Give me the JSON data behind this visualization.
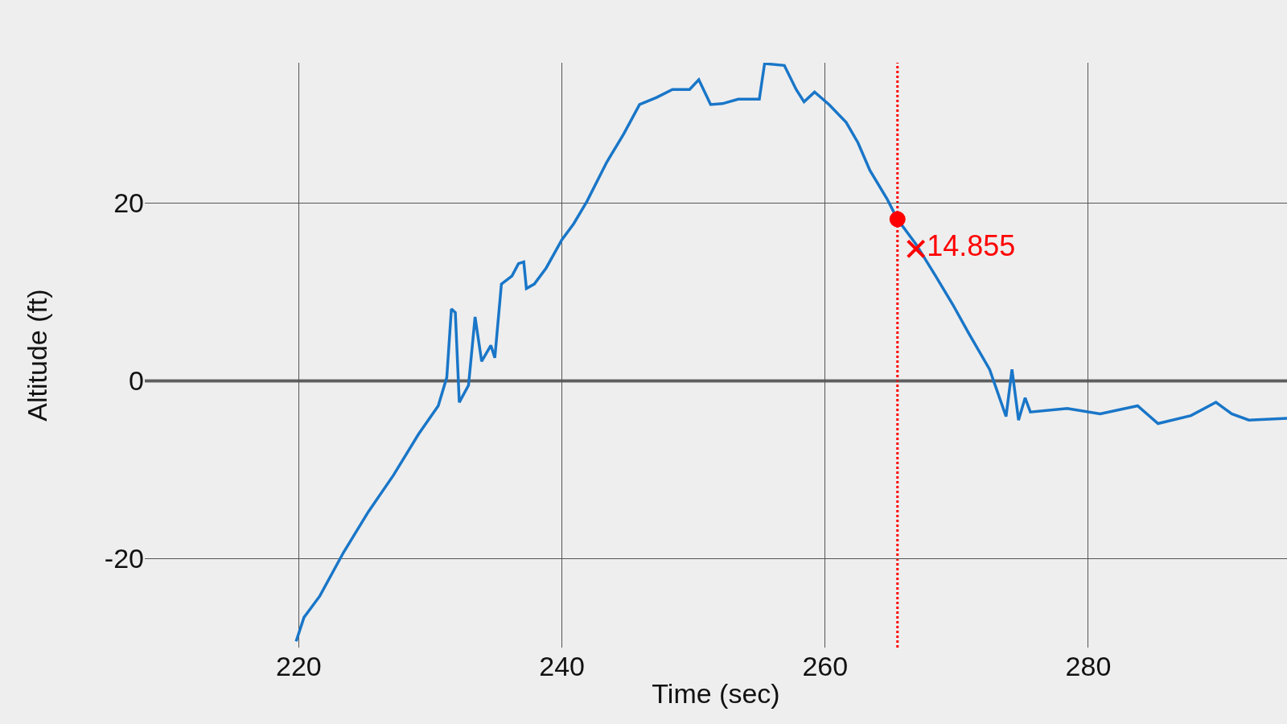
{
  "chart_data": {
    "type": "line",
    "xlabel": "Time (sec)",
    "ylabel": "Altitude (ft)",
    "xlim": [
      208.3,
      295.1
    ],
    "ylim": [
      -30,
      35.8
    ],
    "xticks": [
      220,
      240,
      260,
      280
    ],
    "yticks": [
      -20,
      0,
      20
    ],
    "grid": true,
    "series": [
      {
        "color": "#1976c8",
        "marker": "none",
        "line_style": "solid",
        "x": [
          219.8,
          220.4,
          221.6,
          223.4,
          225.3,
          227.2,
          229.1,
          230.6,
          231.25,
          231.6,
          231.9,
          232.2,
          232.9,
          233.4,
          233.9,
          234.6,
          234.9,
          235.4,
          236.2,
          236.7,
          237.1,
          237.3,
          237.9,
          238.8,
          240.0,
          240.9,
          241.9,
          243.4,
          244.7,
          245.9,
          247.2,
          248.4,
          249.7,
          250.4,
          251.3,
          252.2,
          253.4,
          255.0,
          255.4,
          256.9,
          257.8,
          258.4,
          259.2,
          260.3,
          261.6,
          262.5,
          263.4,
          264.7,
          265.5,
          266.9,
          268.4,
          269.7,
          270.9,
          272.5,
          273.75,
          274.2,
          274.7,
          275.2,
          275.6,
          278.4,
          280.9,
          283.75,
          285.3,
          287.8,
          289.7,
          290.9,
          292.2,
          295.1
        ],
        "values": [
          -29.3,
          -26.6,
          -24.2,
          -19.3,
          -14.7,
          -10.6,
          -6.0,
          -2.8,
          0.4,
          8.1,
          7.7,
          -2.4,
          -0.5,
          7.2,
          2.2,
          4.0,
          2.6,
          10.9,
          11.8,
          13.2,
          13.4,
          10.4,
          10.9,
          12.7,
          15.9,
          17.7,
          20.2,
          24.6,
          27.8,
          31.1,
          31.9,
          32.8,
          32.8,
          33.9,
          31.1,
          31.2,
          31.7,
          31.7,
          35.7,
          35.5,
          32.8,
          31.4,
          32.5,
          31.1,
          29.1,
          26.8,
          23.7,
          20.5,
          18.2,
          15.4,
          11.8,
          8.6,
          5.4,
          1.3,
          -4.0,
          1.3,
          -4.4,
          -1.9,
          -3.5,
          -3.1,
          -3.7,
          -2.8,
          -4.8,
          -3.9,
          -2.4,
          -3.7,
          -4.4,
          -4.2
        ]
      },
      {
        "type": "scatter",
        "color": "#ff0000",
        "marker": "circle",
        "x": [
          265.5
        ],
        "values": [
          18.2
        ]
      },
      {
        "type": "scatter",
        "color": "#ff0000",
        "marker": "cross",
        "x": [
          266.9
        ],
        "values": [
          14.855
        ],
        "value_labels": [
          "14.855"
        ]
      }
    ],
    "ref_lines": [
      {
        "axis": "y",
        "value": 0,
        "color": "#666666",
        "line_style": "solid"
      },
      {
        "axis": "x",
        "value": 265.5,
        "color": "#ff0000",
        "line_style": "dotted"
      }
    ]
  }
}
